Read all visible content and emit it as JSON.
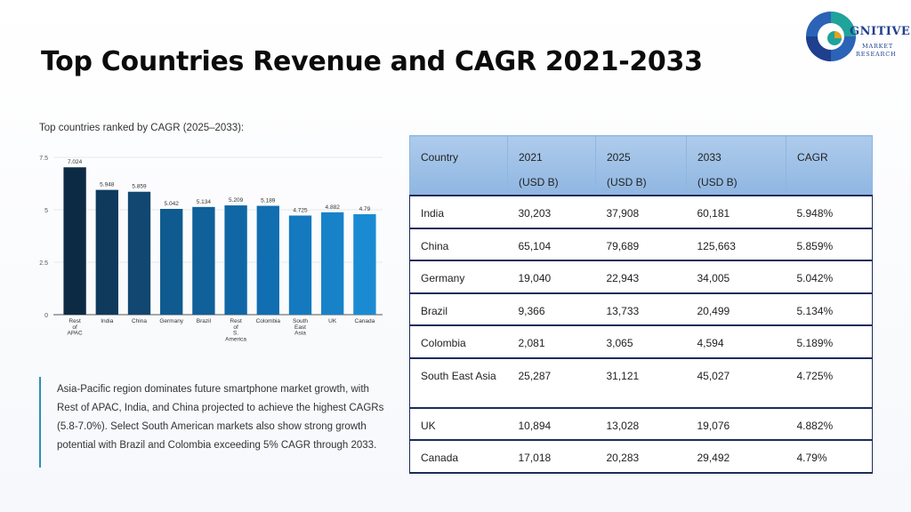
{
  "title": "Top Countries Revenue and CAGR 2021-2033",
  "logo": {
    "line1": "GNITIVE",
    "line2": "MARKET",
    "line3": "RESEARCH",
    "colors": [
      "#1fa39a",
      "#2b63b7",
      "#1f3f8f",
      "#e6a21c"
    ]
  },
  "chart_caption": "Top countries ranked by CAGR (2025–2033):",
  "chart_data": {
    "type": "bar",
    "categories": [
      [
        "Rest",
        "of",
        "APAC"
      ],
      [
        "India"
      ],
      [
        "China"
      ],
      [
        "Germany"
      ],
      [
        "Brazil"
      ],
      [
        "Rest",
        "of",
        "S.",
        "America"
      ],
      [
        "Colombia"
      ],
      [
        "South",
        "East",
        "Asia"
      ],
      [
        "UK"
      ],
      [
        "Canada"
      ]
    ],
    "values": [
      7.024,
      5.948,
      5.859,
      5.042,
      5.134,
      5.209,
      5.189,
      4.725,
      4.882,
      4.79
    ],
    "value_labels": [
      "7.024",
      "5.948",
      "5.859",
      "5.042",
      "5.134",
      "5.209",
      "5.189",
      "4.725",
      "4.882",
      "4.79"
    ],
    "yticks": [
      0,
      2.5,
      5,
      7.5
    ],
    "ytick_labels": [
      "0",
      "2.5",
      "5",
      "7.5"
    ],
    "ylim": [
      0,
      7.5
    ],
    "colors": [
      "#0d2a45",
      "#0f3a5c",
      "#114770",
      "#0f5a8e",
      "#10609a",
      "#1067a5",
      "#116eb1",
      "#1479bf",
      "#1782c8",
      "#1a8bd2"
    ],
    "grid": true
  },
  "note": "Asia-Pacific region dominates future smartphone market growth, with Rest of APAC, India, and China projected to achieve the highest CAGRs (5.8-7.0%). Select South American markets also show strong growth potential with Brazil and Colombia exceeding 5% CAGR through 2033.",
  "table": {
    "headers": {
      "country": "Country",
      "y2021": "2021",
      "y2025": "2025",
      "y2033": "2033",
      "unit": "(USD B)",
      "cagr": "CAGR"
    },
    "rows": [
      {
        "country": "India",
        "y2021": "30,203",
        "y2025": "37,908",
        "y2033": "60,181",
        "cagr": "5.948%"
      },
      {
        "country": "China",
        "y2021": "65,104",
        "y2025": "79,689",
        "y2033": "125,663",
        "cagr": "5.859%"
      },
      {
        "country": "Germany",
        "y2021": "19,040",
        "y2025": "22,943",
        "y2033": "34,005",
        "cagr": "5.042%"
      },
      {
        "country": "Brazil",
        "y2021": "9,366",
        "y2025": "13,733",
        "y2033": "20,499",
        "cagr": "5.134%"
      },
      {
        "country": "Colombia",
        "y2021": "2,081",
        "y2025": "3,065",
        "y2033": "4,594",
        "cagr": "5.189%"
      },
      {
        "country": "South East Asia",
        "y2021": "25,287",
        "y2025": "31,121",
        "y2033": "45,027",
        "cagr": "4.725%"
      },
      {
        "country": "UK",
        "y2021": "10,894",
        "y2025": "13,028",
        "y2033": "19,076",
        "cagr": "4.882%"
      },
      {
        "country": "Canada",
        "y2021": "17,018",
        "y2025": "20,283",
        "y2033": "29,492",
        "cagr": "4.79%"
      }
    ]
  }
}
